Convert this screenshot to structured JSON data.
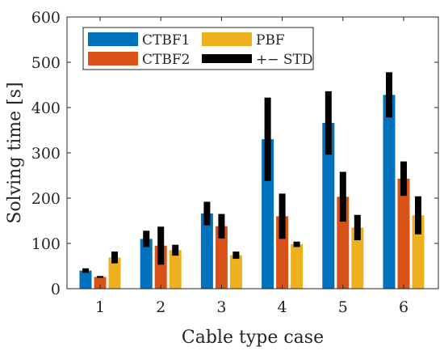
{
  "chart_data": {
    "type": "bar",
    "xlabel": "Cable type case",
    "ylabel": "Solving time [s]",
    "ylim": [
      0,
      600
    ],
    "yticks": [
      0,
      100,
      200,
      300,
      400,
      500,
      600
    ],
    "categories": [
      "1",
      "2",
      "3",
      "4",
      "5",
      "6"
    ],
    "series": [
      {
        "name": "CTBF1",
        "color": "#0072BD",
        "values": [
          40,
          110,
          166,
          330,
          366,
          428
        ],
        "std": [
          5,
          18,
          26,
          92,
          70,
          50
        ]
      },
      {
        "name": "CTBF2",
        "color": "#D95319",
        "values": [
          26,
          95,
          138,
          160,
          203,
          243
        ],
        "std": [
          2,
          42,
          27,
          50,
          55,
          38
        ]
      },
      {
        "name": "PBF",
        "color": "#EDB120",
        "values": [
          69,
          85,
          74,
          98,
          135,
          162
        ],
        "std": [
          13,
          12,
          8,
          6,
          28,
          42
        ]
      }
    ],
    "error_legend": "+− STD",
    "error_color": "#000000",
    "legend_position": "top-left",
    "grid": false
  }
}
